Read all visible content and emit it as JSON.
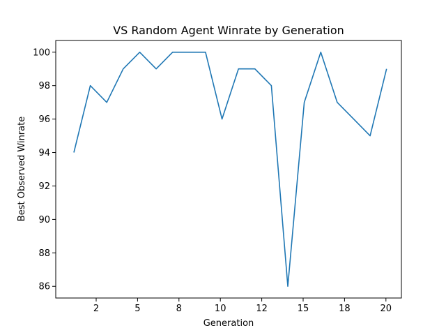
{
  "chart_data": {
    "type": "line",
    "title": "VS Random Agent Winrate by Generation",
    "xlabel": "Generation",
    "ylabel": "Best Observed Winrate",
    "x_ticks": [
      2,
      5,
      8,
      10,
      12,
      15,
      18,
      20
    ],
    "y_ticks": [
      86,
      88,
      90,
      92,
      94,
      96,
      98,
      100
    ],
    "xlim": [
      -0.1,
      20.9
    ],
    "ylim": [
      85.3,
      100.7
    ],
    "grid": false,
    "series": [
      {
        "color": "#1f77b4",
        "x": [
          1,
          2,
          3,
          4,
          5,
          6,
          7,
          8,
          9,
          10,
          11,
          12,
          13,
          14,
          15,
          16,
          17,
          18,
          19,
          20
        ],
        "values": [
          94,
          98,
          97,
          99,
          100,
          99,
          100,
          100,
          100,
          96,
          99,
          99,
          98,
          86,
          97,
          100,
          97,
          96,
          95,
          99
        ]
      }
    ]
  }
}
